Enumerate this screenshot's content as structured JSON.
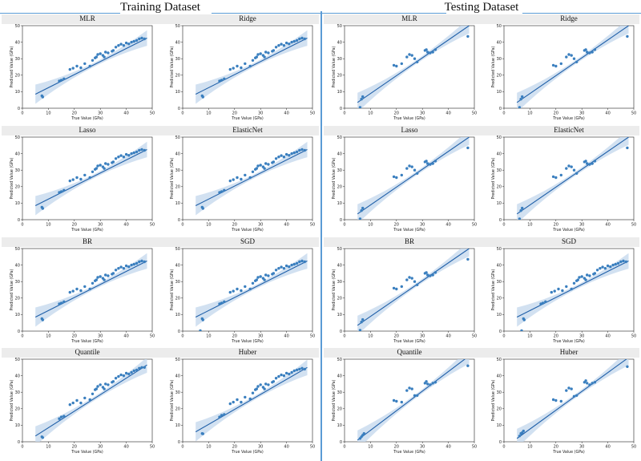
{
  "header": {
    "training_title": "Training Dataset",
    "testing_title": "Testing Dataset"
  },
  "colors": {
    "point": "#3a7fbf",
    "line": "#1f5fa8",
    "band": "#c7d9ee",
    "divider": "#5b9bd5"
  },
  "axis": {
    "xlabel": "True Value (GPa)",
    "ylabel": "Predicted Value (GPa)",
    "ticks": [
      "0",
      "10",
      "20",
      "30",
      "40",
      "50"
    ],
    "xlim": [
      0,
      50
    ],
    "ylim": [
      0,
      50
    ]
  },
  "chart_data": [
    {
      "type": "scatter",
      "dataset": "Training",
      "title": "MLR",
      "fit": [
        8.5,
        42.5
      ],
      "x": [
        7.5,
        7.8,
        14.2,
        15,
        16,
        18.3,
        19.5,
        21,
        22.5,
        24,
        26,
        27,
        28,
        28.5,
        29,
        30,
        31,
        31.5,
        32,
        33,
        34.5,
        35,
        36,
        37,
        38,
        39,
        40,
        41,
        42,
        43,
        44,
        45,
        46,
        47
      ],
      "y": [
        7.5,
        6.8,
        16.5,
        17,
        17.8,
        23.5,
        24.2,
        25.5,
        24.5,
        27,
        25.5,
        29,
        30.5,
        31,
        32.5,
        33,
        32,
        31,
        34,
        33.5,
        34.5,
        35,
        37,
        38,
        38.8,
        38,
        39.5,
        39,
        40,
        40.5,
        41,
        42,
        42.5,
        42
      ]
    },
    {
      "type": "scatter",
      "dataset": "Training",
      "title": "Ridge",
      "fit": [
        8.5,
        42.5
      ],
      "x": [
        7.5,
        7.8,
        14.2,
        15,
        16,
        18.3,
        19.5,
        21,
        22.5,
        24,
        26,
        27,
        28,
        28.5,
        29,
        30,
        31,
        31.5,
        32,
        33,
        34.5,
        35,
        36,
        37,
        38,
        39,
        40,
        41,
        42,
        43,
        44,
        45,
        46,
        47
      ],
      "y": [
        7.5,
        6.8,
        16.5,
        17,
        17.8,
        23.5,
        24.2,
        25.5,
        24.5,
        27,
        25.5,
        29,
        30.5,
        31,
        32.5,
        33,
        32,
        31,
        34,
        33.5,
        34.5,
        35,
        37,
        38,
        38.8,
        38,
        39.5,
        39,
        40,
        40.5,
        41,
        42,
        42.5,
        42
      ]
    },
    {
      "type": "scatter",
      "dataset": "Testing",
      "title": "MLR",
      "fit": [
        3.5,
        50
      ],
      "x": [
        6,
        6.5,
        7,
        19,
        20,
        22,
        24,
        25,
        26,
        27,
        28,
        31,
        31.5,
        32,
        33,
        34,
        35,
        47.5
      ],
      "y": [
        0.5,
        5.5,
        7,
        26,
        25.5,
        27,
        31,
        32.5,
        32,
        30,
        28,
        35,
        35.5,
        34,
        33.5,
        34,
        35.5,
        43.5
      ]
    },
    {
      "type": "scatter",
      "dataset": "Testing",
      "title": "Ridge",
      "fit": [
        3.5,
        50
      ],
      "x": [
        6,
        6.5,
        7,
        19,
        20,
        22,
        24,
        25,
        26,
        27,
        28,
        31,
        31.5,
        32,
        33,
        34,
        35,
        47.5
      ],
      "y": [
        0.5,
        5.5,
        7,
        26,
        25.5,
        27,
        31,
        32.5,
        32,
        30,
        28,
        35,
        35.5,
        34,
        33.5,
        34,
        35.5,
        43.5
      ]
    },
    {
      "type": "scatter",
      "dataset": "Training",
      "title": "Lasso",
      "fit": [
        8.5,
        42.5
      ],
      "x": [
        7.5,
        7.8,
        14.2,
        15,
        16,
        18.3,
        19.5,
        21,
        22.5,
        24,
        26,
        27,
        28,
        28.5,
        29,
        30,
        31,
        31.5,
        32,
        33,
        34.5,
        35,
        36,
        37,
        38,
        39,
        40,
        41,
        42,
        43,
        44,
        45,
        46,
        47
      ],
      "y": [
        7.5,
        6.8,
        16.5,
        17,
        17.8,
        23.5,
        24.2,
        25.5,
        24.5,
        27,
        25.5,
        29,
        30.5,
        31,
        32.5,
        33,
        32,
        31,
        34,
        33.5,
        34.5,
        35,
        37,
        38,
        38.8,
        38,
        39.5,
        39,
        40,
        40.5,
        41,
        42,
        42.5,
        42
      ]
    },
    {
      "type": "scatter",
      "dataset": "Training",
      "title": "ElasticNet",
      "fit": [
        8.5,
        42.5
      ],
      "x": [
        7.5,
        7.8,
        14.2,
        15,
        16,
        18.3,
        19.5,
        21,
        22.5,
        24,
        26,
        27,
        28,
        28.5,
        29,
        30,
        31,
        31.5,
        32,
        33,
        34.5,
        35,
        36,
        37,
        38,
        39,
        40,
        41,
        42,
        43,
        44,
        45,
        46,
        47
      ],
      "y": [
        7.5,
        6.8,
        16.5,
        17,
        17.8,
        23.5,
        24.2,
        25.5,
        24.5,
        27,
        25.5,
        29,
        30.5,
        31,
        32.5,
        33,
        32,
        31,
        34,
        33.5,
        34.5,
        35,
        37,
        38,
        38.8,
        38,
        39.5,
        39,
        40,
        40.5,
        41,
        42,
        42.5,
        42
      ]
    },
    {
      "type": "scatter",
      "dataset": "Testing",
      "title": "Lasso",
      "fit": [
        3.5,
        50
      ],
      "x": [
        6,
        6.5,
        7,
        19,
        20,
        22,
        24,
        25,
        26,
        27,
        28,
        31,
        31.5,
        32,
        33,
        34,
        35,
        47.5
      ],
      "y": [
        0.5,
        5.5,
        7,
        26,
        25.5,
        27,
        31,
        32.5,
        32,
        30,
        28,
        35,
        35.5,
        34,
        33.5,
        34,
        35.5,
        43.5
      ]
    },
    {
      "type": "scatter",
      "dataset": "Testing",
      "title": "ElasticNet",
      "fit": [
        3.5,
        50
      ],
      "x": [
        6,
        6.5,
        7,
        19,
        20,
        22,
        24,
        25,
        26,
        27,
        28,
        31,
        31.5,
        32,
        33,
        34,
        35,
        47.5
      ],
      "y": [
        0.5,
        5.5,
        7,
        26,
        25.5,
        27,
        31,
        32.5,
        32,
        30,
        28,
        35,
        35.5,
        34,
        33.5,
        34,
        35.5,
        43.5
      ]
    },
    {
      "type": "scatter",
      "dataset": "Training",
      "title": "BR",
      "fit": [
        8.5,
        42.5
      ],
      "x": [
        7.5,
        7.8,
        14.2,
        15,
        16,
        18.3,
        19.5,
        21,
        22.5,
        24,
        26,
        27,
        28,
        28.5,
        29,
        30,
        31,
        31.5,
        32,
        33,
        34.5,
        35,
        36,
        37,
        38,
        39,
        40,
        41,
        42,
        43,
        44,
        45,
        46,
        47
      ],
      "y": [
        7.5,
        6.8,
        16.5,
        17,
        17.8,
        23.5,
        24.2,
        25.5,
        24.5,
        27,
        25.5,
        29,
        30.5,
        31,
        32.5,
        33,
        32,
        31,
        34,
        33.5,
        34.5,
        35,
        37,
        38,
        38.8,
        38,
        39.5,
        39,
        40,
        40.5,
        41,
        42,
        42.5,
        42
      ]
    },
    {
      "type": "scatter",
      "dataset": "Training",
      "title": "SGD",
      "fit": [
        8.5,
        42.5
      ],
      "x": [
        6.8,
        7.5,
        7.8,
        14.2,
        15,
        16,
        18.3,
        19.5,
        21,
        22.5,
        24,
        26,
        27,
        28,
        28.5,
        29,
        30,
        31,
        31.5,
        32,
        33,
        34.5,
        35,
        36,
        37,
        38,
        39,
        40,
        41,
        42,
        43,
        44,
        45,
        46,
        47
      ],
      "y": [
        0.3,
        7.5,
        6.8,
        16.5,
        17,
        17.8,
        23.5,
        24.2,
        25.5,
        24.5,
        27,
        25.5,
        29,
        30.5,
        31,
        32.5,
        33,
        32,
        31,
        34,
        33.5,
        34.5,
        35,
        37,
        38,
        38.8,
        38,
        39.5,
        39,
        40,
        40.5,
        41,
        42,
        42.5,
        42
      ]
    },
    {
      "type": "scatter",
      "dataset": "Testing",
      "title": "BR",
      "fit": [
        3.5,
        50
      ],
      "x": [
        6,
        6.5,
        7,
        19,
        20,
        22,
        24,
        25,
        26,
        27,
        28,
        31,
        31.5,
        32,
        33,
        34,
        35,
        47.5
      ],
      "y": [
        0.5,
        5.5,
        7,
        26,
        25.5,
        27,
        31,
        32.5,
        32,
        30,
        28,
        35,
        35.5,
        34,
        33.5,
        34,
        35.5,
        43.5
      ]
    },
    {
      "type": "scatter",
      "dataset": "Testing",
      "title": "SGD",
      "fit": [
        8.5,
        42.5
      ],
      "x": [
        6.8,
        7.5,
        7.8,
        14.2,
        15,
        16,
        18.3,
        19.5,
        21,
        22.5,
        24,
        26,
        27,
        28,
        28.5,
        29,
        30,
        31,
        31.5,
        32,
        33,
        34.5,
        35,
        36,
        37,
        38,
        39,
        40,
        41,
        42,
        43,
        44,
        45,
        46,
        47
      ],
      "y": [
        0.3,
        7.5,
        6.8,
        16.5,
        17,
        17.8,
        23.5,
        24.2,
        25.5,
        24.5,
        27,
        25.5,
        29,
        30.5,
        31,
        32.5,
        33,
        32,
        31,
        34,
        33.5,
        34.5,
        35,
        37,
        38,
        38.8,
        38,
        39.5,
        39,
        40,
        40.5,
        41,
        42,
        42.5,
        42
      ]
    },
    {
      "type": "scatter",
      "dataset": "Training",
      "title": "Quantile",
      "fit": [
        3.5,
        46.5
      ],
      "x": [
        7.5,
        7.8,
        14.2,
        15,
        16,
        18.3,
        19.5,
        21,
        22.5,
        24,
        26,
        27,
        28,
        28.5,
        29,
        30,
        31,
        31.5,
        32,
        33,
        34.5,
        35,
        36,
        37,
        38,
        39,
        40,
        41,
        42,
        43,
        44,
        45,
        46,
        47
      ],
      "y": [
        3,
        2.5,
        14,
        15,
        15.5,
        22.5,
        23.5,
        25,
        23.5,
        26.5,
        25.5,
        29,
        31.5,
        32,
        33.5,
        34.5,
        33,
        32,
        35,
        34.5,
        36,
        36.5,
        38.5,
        39.5,
        40.5,
        40,
        41.5,
        41,
        42,
        43,
        43.5,
        44.5,
        45,
        45
      ]
    },
    {
      "type": "scatter",
      "dataset": "Training",
      "title": "Huber",
      "fit": [
        6,
        45
      ],
      "x": [
        7.5,
        7.8,
        14.2,
        15,
        16,
        18.3,
        19.5,
        21,
        22.5,
        24,
        26,
        27,
        28,
        28.5,
        29,
        30,
        31,
        31.5,
        32,
        33,
        34.5,
        35,
        36,
        37,
        38,
        39,
        40,
        41,
        42,
        43,
        44,
        45,
        46,
        47
      ],
      "y": [
        5,
        4.8,
        15,
        16,
        16.5,
        23,
        24,
        25.5,
        24,
        27,
        26,
        29.5,
        31.5,
        32,
        33.5,
        34.5,
        33,
        32,
        35,
        34.5,
        36,
        36.5,
        38.5,
        39.5,
        40.5,
        40,
        41.5,
        41,
        42,
        43,
        43.5,
        44,
        44.5,
        44
      ]
    },
    {
      "type": "scatter",
      "dataset": "Testing",
      "title": "Quantile",
      "fit": [
        1,
        52
      ],
      "x": [
        6,
        6.5,
        7,
        7.5,
        19,
        20,
        22,
        24,
        25,
        26,
        27,
        28,
        31,
        31.5,
        32,
        33,
        34,
        35,
        47.5
      ],
      "y": [
        2,
        3,
        4,
        5,
        25,
        24.5,
        24,
        31,
        32.5,
        32,
        28,
        28,
        35.5,
        36.5,
        35,
        34.5,
        35.5,
        36,
        46
      ]
    },
    {
      "type": "scatter",
      "dataset": "Testing",
      "title": "Huber",
      "fit": [
        2,
        51
      ],
      "x": [
        6,
        6.5,
        7,
        7.5,
        19,
        20,
        22,
        24,
        25,
        26,
        27,
        28,
        31,
        31.5,
        32,
        33,
        34,
        35,
        47.5
      ],
      "y": [
        3.5,
        5,
        5.5,
        6.5,
        25.5,
        25,
        24.5,
        31,
        32.5,
        32,
        27.5,
        28,
        36,
        37,
        35.5,
        34.5,
        35.5,
        36,
        45.5
      ]
    }
  ]
}
